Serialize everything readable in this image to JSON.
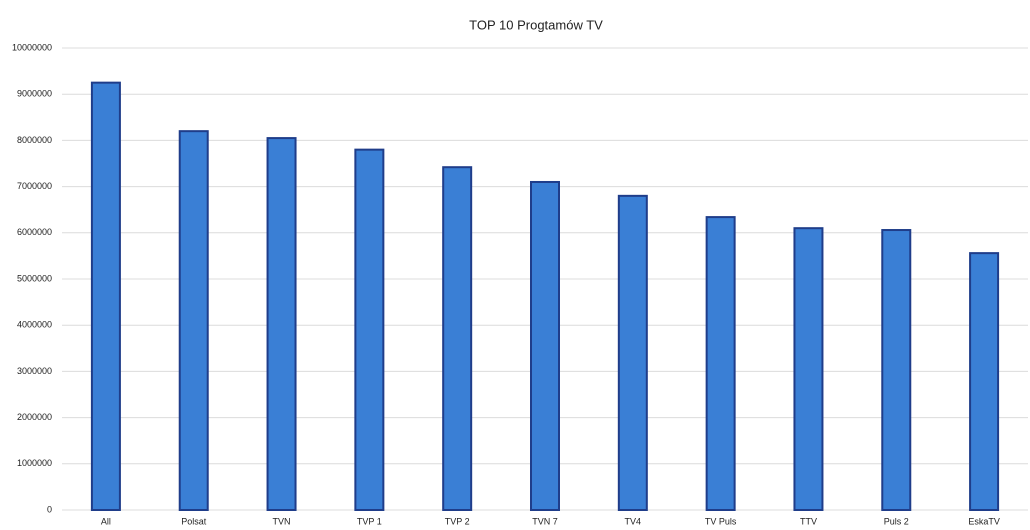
{
  "chart_data": {
    "type": "bar",
    "title": "TOP 10 Progtamów TV",
    "categories": [
      "All",
      "Polsat",
      "TVN",
      "TVP 1",
      "TVP 2",
      "TVN 7",
      "TV4",
      "TV Puls",
      "TTV",
      "Puls 2",
      "EskaTV"
    ],
    "values": [
      9250000,
      8200000,
      8050000,
      7800000,
      7420000,
      7100000,
      6800000,
      6340000,
      6100000,
      6060000,
      5560000
    ],
    "color": "#3a7fd5",
    "ylim": [
      0,
      10000000
    ],
    "yticks": [
      0,
      1000000,
      2000000,
      3000000,
      4000000,
      5000000,
      6000000,
      7000000,
      8000000,
      9000000,
      10000000
    ],
    "grid": true
  }
}
